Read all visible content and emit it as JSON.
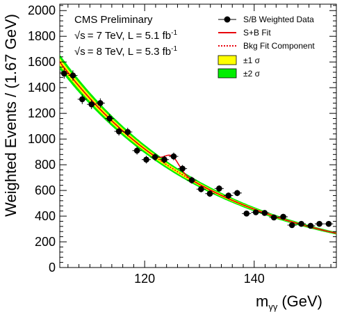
{
  "chart_data": {
    "type": "scatter",
    "xlabel_main": "m",
    "xlabel_sub": "γγ",
    "xlabel_unit": "(GeV)",
    "ylabel": "Weighted Events / (1.67 GeV)",
    "xlim": [
      104.5,
      155
    ],
    "ylim": [
      0,
      2050
    ],
    "xticks": [
      120,
      140
    ],
    "yticks": [
      0,
      200,
      400,
      600,
      800,
      1000,
      1200,
      1400,
      1600,
      1800,
      2000
    ],
    "annotations": {
      "title": "CMS Preliminary",
      "line1_energy": "= 7 TeV, L = 5.1 fb",
      "line1_sup": "-1",
      "line2_energy": "= 8 TeV, L = 5.3 fb",
      "line2_sup": "-1",
      "sqrt_symbol": "√s"
    },
    "legend": [
      {
        "label": "S/B Weighted Data",
        "kind": "data"
      },
      {
        "label": "S+B Fit",
        "kind": "line",
        "color": "#e8000b"
      },
      {
        "label": "Bkg Fit Component",
        "kind": "dotted",
        "color": "#e8000b"
      },
      {
        "label": "±1 σ",
        "kind": "band",
        "color": "#ffff00"
      },
      {
        "label": "±2 σ",
        "kind": "band",
        "color": "#00ee00"
      }
    ],
    "bin_half_width": 0.835,
    "data": [
      {
        "x": 105.3,
        "y": 1510,
        "err": 40
      },
      {
        "x": 106.9,
        "y": 1495,
        "err": 40
      },
      {
        "x": 108.6,
        "y": 1310,
        "err": 38
      },
      {
        "x": 110.3,
        "y": 1270,
        "err": 37
      },
      {
        "x": 111.9,
        "y": 1280,
        "err": 37
      },
      {
        "x": 113.6,
        "y": 1160,
        "err": 35
      },
      {
        "x": 115.3,
        "y": 1060,
        "err": 33
      },
      {
        "x": 116.9,
        "y": 1055,
        "err": 33
      },
      {
        "x": 118.6,
        "y": 910,
        "err": 31
      },
      {
        "x": 120.3,
        "y": 840,
        "err": 30
      },
      {
        "x": 121.9,
        "y": 860,
        "err": 30
      },
      {
        "x": 123.6,
        "y": 840,
        "err": 30
      },
      {
        "x": 125.3,
        "y": 865,
        "err": 30
      },
      {
        "x": 126.9,
        "y": 770,
        "err": 28
      },
      {
        "x": 128.6,
        "y": 680,
        "err": 27
      },
      {
        "x": 130.3,
        "y": 610,
        "err": 25
      },
      {
        "x": 131.9,
        "y": 575,
        "err": 25
      },
      {
        "x": 133.6,
        "y": 615,
        "err": 25
      },
      {
        "x": 135.3,
        "y": 560,
        "err": 24
      },
      {
        "x": 136.9,
        "y": 580,
        "err": 24
      },
      {
        "x": 138.6,
        "y": 420,
        "err": 20
      },
      {
        "x": 140.3,
        "y": 430,
        "err": 21
      },
      {
        "x": 141.9,
        "y": 425,
        "err": 21
      },
      {
        "x": 143.6,
        "y": 390,
        "err": 20
      },
      {
        "x": 145.3,
        "y": 395,
        "err": 20
      },
      {
        "x": 146.9,
        "y": 330,
        "err": 18
      },
      {
        "x": 148.6,
        "y": 340,
        "err": 19
      },
      {
        "x": 150.3,
        "y": 325,
        "err": 18
      },
      {
        "x": 151.9,
        "y": 340,
        "err": 19
      },
      {
        "x": 153.6,
        "y": 340,
        "err": 19
      }
    ],
    "background_fit": {
      "type": "exponential",
      "amplitude_at_104_5": 1600,
      "decay_per_gev": 0.0355
    },
    "signal": {
      "mass": 125.0,
      "width": 1.3,
      "amplitude": 95
    },
    "band_1sigma_frac": 0.018,
    "band_2sigma_frac": 0.036
  }
}
